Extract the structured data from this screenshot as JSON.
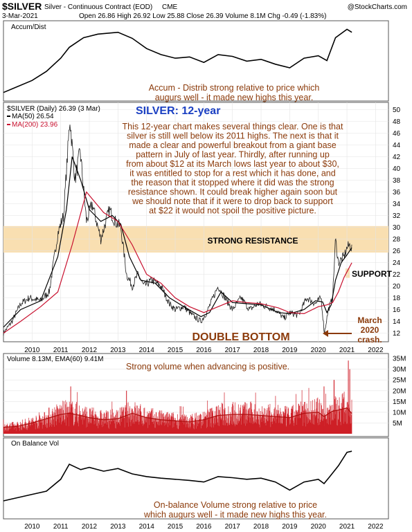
{
  "header": {
    "symbol": "$SILVER",
    "name": "Silver - Continuous Contract (EOD)",
    "exchange": "CME",
    "date": "3-Mar-2021",
    "ohlc": "Open 26.86 High 26.92 Low 25.88 Close 26.39 Volume 8.1M Chg -0.49 (-1.83%)",
    "watermark": "@StockCharts.com"
  },
  "chart_data": [
    {
      "type": "line",
      "panel": "accum_dist",
      "title": "Accum/Dist",
      "annotation": [
        "Accum - Distrib strong relative to price which",
        "augurs well - it made new highs this year."
      ],
      "x": [
        2009.0,
        2010.0,
        2010.5,
        2011.0,
        2011.3,
        2011.8,
        2012.3,
        2013.0,
        2013.5,
        2014.0,
        2014.5,
        2015.0,
        2015.5,
        2016.0,
        2016.5,
        2017.0,
        2017.5,
        2018.0,
        2018.5,
        2019.0,
        2019.5,
        2020.0,
        2020.3,
        2020.6,
        2021.0,
        2021.17
      ],
      "y": [
        -5,
        15,
        30,
        52,
        70,
        86,
        92,
        95,
        85,
        68,
        58,
        52,
        54,
        45,
        58,
        55,
        47,
        50,
        42,
        36,
        52,
        56,
        48,
        86,
        100,
        95
      ]
    },
    {
      "type": "line",
      "panel": "price",
      "title": "SILVER: 12-year",
      "legend": [
        "$SILVER (Daily) 26.39 (3 Mar)",
        "MA(50) 26.54",
        "MA(200) 23.96"
      ],
      "ylim": [
        11,
        51
      ],
      "yticks": [
        12,
        14,
        16,
        18,
        20,
        22,
        24,
        26,
        28,
        30,
        32,
        34,
        36,
        38,
        40,
        42,
        44,
        46,
        48,
        50
      ],
      "xticks": [
        "2010",
        "2011",
        "2012",
        "2013",
        "2014",
        "2015",
        "2016",
        "2017",
        "2018",
        "2019",
        "2020",
        "2021",
        "2022"
      ],
      "series": [
        {
          "name": "$SILVER",
          "x": [
            2009.0,
            2009.3,
            2009.6,
            2009.9,
            2010.3,
            2010.6,
            2010.9,
            2011.1,
            2011.32,
            2011.5,
            2011.68,
            2011.9,
            2012.1,
            2012.4,
            2012.7,
            2012.9,
            2013.1,
            2013.3,
            2013.5,
            2013.7,
            2013.9,
            2014.2,
            2014.5,
            2014.8,
            2015.0,
            2015.3,
            2015.6,
            2015.9,
            2016.1,
            2016.5,
            2016.8,
            2017.0,
            2017.3,
            2017.6,
            2017.9,
            2018.2,
            2018.5,
            2018.8,
            2019.0,
            2019.3,
            2019.6,
            2019.9,
            2020.1,
            2020.21,
            2020.35,
            2020.5,
            2020.6,
            2020.7,
            2020.9,
            2021.0,
            2021.1,
            2021.17
          ],
          "y": [
            12,
            14,
            17,
            18,
            17.5,
            19,
            29,
            32,
            48.5,
            38,
            43,
            31,
            34,
            28,
            33,
            31,
            30,
            22,
            20,
            22,
            20,
            21,
            20,
            17,
            16,
            16.5,
            15,
            14,
            15.5,
            20,
            17.5,
            16,
            18,
            16,
            17,
            16.5,
            16,
            14.5,
            15.5,
            15,
            18,
            17,
            18,
            12,
            16,
            18,
            28,
            24,
            25,
            26.5,
            27,
            26.4
          ]
        },
        {
          "name": "MA(50)",
          "x": [
            2009.0,
            2009.6,
            2010.3,
            2010.9,
            2011.2,
            2011.4,
            2011.7,
            2012.0,
            2012.4,
            2012.8,
            2013.1,
            2013.4,
            2013.8,
            2014.3,
            2014.8,
            2015.3,
            2015.9,
            2016.2,
            2016.6,
            2017.0,
            2017.5,
            2018.0,
            2018.6,
            2019.0,
            2019.5,
            2019.9,
            2020.15,
            2020.3,
            2020.45,
            2020.6,
            2020.8,
            2021.0,
            2021.17
          ],
          "y": [
            13,
            16,
            17.5,
            25,
            33,
            42,
            38,
            33,
            31,
            32,
            30.5,
            25,
            21,
            20.5,
            18,
            16.5,
            14.8,
            15.5,
            19,
            17.2,
            17,
            16.8,
            15.5,
            15.3,
            16,
            17.5,
            17.3,
            15.5,
            16.8,
            21,
            24,
            25.3,
            26.54
          ]
        },
        {
          "name": "MA(200)",
          "x": [
            2009.0,
            2009.6,
            2010.3,
            2010.9,
            2011.4,
            2011.9,
            2012.5,
            2013.0,
            2013.5,
            2014.0,
            2014.5,
            2015.0,
            2015.5,
            2016.0,
            2016.5,
            2017.0,
            2017.5,
            2018.0,
            2018.6,
            2019.0,
            2019.5,
            2020.0,
            2020.3,
            2020.5,
            2020.7,
            2020.9,
            2021.17
          ],
          "y": [
            12,
            14,
            16.5,
            19,
            27,
            36,
            32.5,
            31,
            27,
            22,
            20.5,
            18,
            16.5,
            15.5,
            16.5,
            17.5,
            17.2,
            17,
            16.3,
            15.5,
            15.3,
            16.5,
            16.8,
            17.2,
            19,
            21.5,
            23.96
          ]
        }
      ],
      "zones": [
        {
          "label": "STRONG RESISTANCE",
          "ymin": 25.7,
          "ymax": 30.2,
          "color": "#f9dfb1"
        },
        {
          "label": "SUPPORT",
          "ymin": 21.4,
          "ymax": 23.0,
          "color": "#f9dfb1"
        }
      ],
      "labels": {
        "double_bottom": "DOUBLE BOTTOM",
        "march_crash": [
          "March",
          "2020",
          "crash."
        ]
      },
      "annotation": [
        "This 12-year chart makes several things clear. One is that",
        "silver is still well below its 2011 highs. The next is that it",
        "made a clear and powerful breakout from a giant base",
        "pattern in July of last year. Thirdly, after running up",
        "from about $12 at its March lows last year to about $30,",
        "it was entitled to stop for a rest which it has done, and",
        "the reason that it stopped where it did was the strong",
        "resistance shown. It could break higher again soon but",
        "we should note that if it were to drop back to support",
        "at $22 it would not spoil the positive picture."
      ]
    },
    {
      "type": "bar",
      "panel": "volume",
      "legend": "Volume 8.13M, EMA(60) 9.41M",
      "annotation": "Strong volume when advancing is positive.",
      "yticks": [
        "5M",
        "10M",
        "15M",
        "20M",
        "25M",
        "30M",
        "35M"
      ],
      "ylim": [
        0,
        36
      ],
      "units": "M",
      "x": [
        2009.0,
        2009.5,
        2010.0,
        2010.5,
        2011.0,
        2011.3,
        2011.7,
        2012.0,
        2012.5,
        2013.0,
        2013.5,
        2014.0,
        2014.5,
        2015.0,
        2015.5,
        2016.0,
        2016.5,
        2017.0,
        2017.5,
        2018.0,
        2018.5,
        2019.0,
        2019.5,
        2020.0,
        2020.2,
        2020.5,
        2020.7,
        2021.0,
        2021.17
      ],
      "ema": [
        3,
        3.5,
        5,
        7,
        9,
        9.5,
        8.5,
        7.5,
        6.5,
        7,
        9.5,
        7.5,
        6.5,
        6,
        5.5,
        6.5,
        8.5,
        9,
        9,
        8.5,
        8,
        7.5,
        9.5,
        10,
        8,
        10.5,
        11,
        12,
        9.41
      ],
      "peaks": [
        {
          "x": 2011.35,
          "v": 22
        },
        {
          "x": 2013.3,
          "v": 20
        },
        {
          "x": 2020.2,
          "v": 22
        },
        {
          "x": 2020.55,
          "v": 25
        },
        {
          "x": 2021.05,
          "v": 34
        },
        {
          "x": 2021.1,
          "v": 30
        }
      ]
    },
    {
      "type": "line",
      "panel": "obv",
      "title": "On Balance Vol",
      "annotation": [
        "On-balance Volume strong relative to price",
        "which augurs well - it made new highs this year."
      ],
      "x": [
        2009.0,
        2010.0,
        2010.5,
        2011.0,
        2011.3,
        2011.7,
        2012.0,
        2012.5,
        2013.0,
        2013.5,
        2014.0,
        2014.5,
        2015.0,
        2015.5,
        2016.0,
        2016.5,
        2017.0,
        2017.5,
        2018.0,
        2018.5,
        2019.0,
        2019.5,
        2020.0,
        2020.2,
        2020.4,
        2020.7,
        2021.0,
        2021.17
      ],
      "y": [
        0,
        12,
        18,
        40,
        68,
        58,
        62,
        55,
        60,
        50,
        45,
        42,
        40,
        38,
        35,
        45,
        43,
        40,
        42,
        35,
        20,
        35,
        40,
        32,
        45,
        65,
        90,
        92
      ]
    }
  ]
}
